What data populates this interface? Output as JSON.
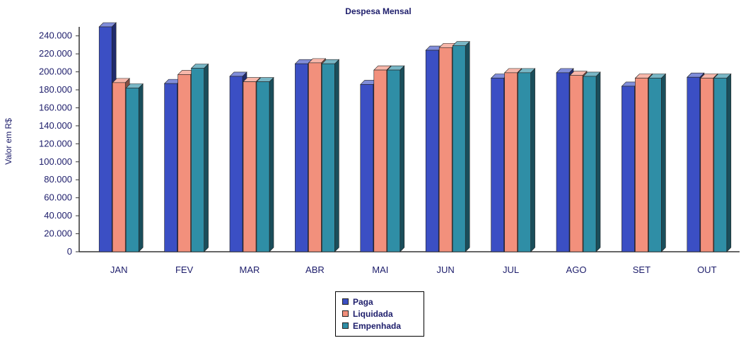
{
  "chart_data": {
    "type": "bar",
    "title": "Despesa Mensal",
    "xlabel": "",
    "ylabel": "Valor em R$",
    "ylim": [
      0,
      250000
    ],
    "ytick_values": [
      0,
      20000,
      40000,
      60000,
      80000,
      100000,
      120000,
      140000,
      160000,
      180000,
      200000,
      220000,
      240000
    ],
    "ytick_labels": [
      "0",
      "20.000",
      "40.000",
      "60.000",
      "80.000",
      "100.000",
      "120.000",
      "140.000",
      "160.000",
      "180.000",
      "200.000",
      "220.000",
      "240.000"
    ],
    "categories": [
      "JAN",
      "FEV",
      "MAR",
      "ABR",
      "MAI",
      "JUN",
      "JUL",
      "AGO",
      "SET",
      "OUT"
    ],
    "series": [
      {
        "name": "Paga",
        "color": "#3b4fc4",
        "values": [
          250000,
          187000,
          195000,
          209000,
          186000,
          224000,
          193000,
          199000,
          184000,
          194000
        ]
      },
      {
        "name": "Liquidada",
        "color": "#f2907c",
        "values": [
          188000,
          197000,
          189000,
          210000,
          202000,
          227000,
          199000,
          196000,
          193000,
          193000
        ]
      },
      {
        "name": "Empenhada",
        "color": "#2f8ea6",
        "values": [
          182000,
          204000,
          189000,
          209000,
          202000,
          229000,
          199000,
          195000,
          193000,
          193000
        ]
      }
    ],
    "grid": false,
    "legend_position": "bottom-center",
    "bar_style": "3d"
  }
}
